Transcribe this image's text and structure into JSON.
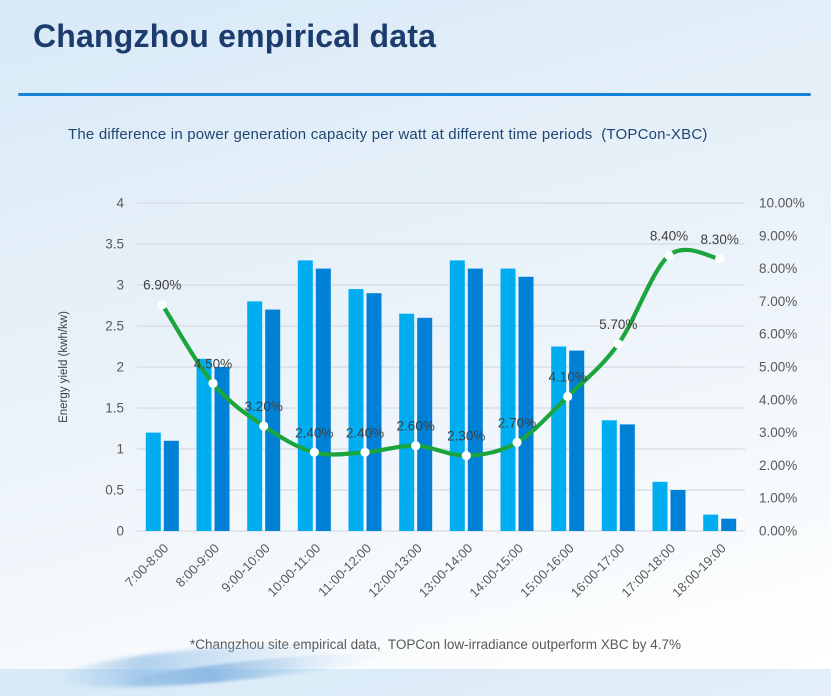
{
  "slide": {
    "title": "Changzhou empirical data",
    "subtitle": "The difference in power generation capacity per watt at different time periods  (TOPCon-XBC)",
    "footnote": "*Changzhou site empirical data,  TOPCon low-irradiance outperform XBC by 4.7%"
  },
  "colors": {
    "title_text": "#1c3c6e",
    "accent_rule": "#1584d8",
    "subtitle_text": "#1f4571",
    "bar_light_blue": "#00adf0",
    "bar_dark_blue": "#0081d6",
    "line_green": "#1aa53d",
    "marker_fill": "#ffffff",
    "axis_text": "#595959",
    "value_label_text": "#3f3f3f",
    "gridline": "#d7dbe2",
    "footnote_text": "#595959"
  },
  "chart_data": {
    "type": "bar",
    "combo": "grouped-bars-plus-smooth-line",
    "title": "",
    "categories": [
      "7:00-8:00",
      "8:00-9:00",
      "9:00-10:00",
      "10:00-11:00",
      "11:00-12:00",
      "12:00-13:00",
      "13:00-14:00",
      "14:00-15:00",
      "15:00-16:00",
      "16:00-17:00",
      "17:00-18:00",
      "18:00-19:00"
    ],
    "series": [
      {
        "name": "bar-series-light-blue",
        "type": "bar",
        "axis": "left",
        "values": [
          1.2,
          2.1,
          2.8,
          3.3,
          2.95,
          2.65,
          3.3,
          3.2,
          2.25,
          1.35,
          0.6,
          0.2
        ]
      },
      {
        "name": "bar-series-dark-blue",
        "type": "bar",
        "axis": "left",
        "values": [
          1.1,
          2.0,
          2.7,
          3.2,
          2.9,
          2.6,
          3.2,
          3.1,
          2.2,
          1.3,
          0.5,
          0.15
        ]
      },
      {
        "name": "difference-line",
        "type": "line",
        "axis": "right",
        "values": [
          6.9,
          4.5,
          3.2,
          2.4,
          2.4,
          2.6,
          2.3,
          2.7,
          4.1,
          5.7,
          8.4,
          8.3
        ],
        "labels": [
          "6.90%",
          "4.50%",
          "3.20%",
          "2.40%",
          "2.40%",
          "2.60%",
          "2.30%",
          "2.70%",
          "4.10%",
          "5.70%",
          "8.40%",
          "8.30%"
        ]
      }
    ],
    "left_axis": {
      "title": "Energy yield (kwh/kw)",
      "min": 0,
      "max": 4,
      "step": 0.5,
      "ticks": [
        "0",
        "0.5",
        "1",
        "1.5",
        "2",
        "2.5",
        "3",
        "3.5",
        "4"
      ]
    },
    "right_axis": {
      "min": 0,
      "max": 10,
      "step": 1,
      "ticks": [
        "0.00%",
        "1.00%",
        "2.00%",
        "3.00%",
        "4.00%",
        "5.00%",
        "6.00%",
        "7.00%",
        "8.00%",
        "9.00%",
        "10.00%"
      ]
    },
    "legend_position": "none",
    "grid": "horizontal"
  }
}
